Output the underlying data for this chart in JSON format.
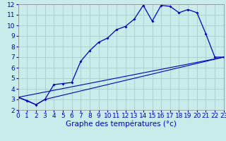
{
  "title": "Graphe des températures (°c)",
  "bg_color": "#c8ecea",
  "grid_color": "#aacccc",
  "line_color": "#0000cc",
  "xlim": [
    0,
    23
  ],
  "ylim": [
    2,
    12
  ],
  "xticks": [
    0,
    1,
    2,
    3,
    4,
    5,
    6,
    7,
    8,
    9,
    10,
    11,
    12,
    13,
    14,
    15,
    16,
    17,
    18,
    19,
    20,
    21,
    22,
    23
  ],
  "yticks": [
    2,
    3,
    4,
    5,
    6,
    7,
    8,
    9,
    10,
    11,
    12
  ],
  "main_x": [
    0,
    1,
    2,
    3,
    4,
    5,
    6,
    7,
    8,
    9,
    10,
    11,
    12,
    13,
    14,
    15,
    16,
    17,
    18,
    19,
    20,
    21,
    22,
    23
  ],
  "main_y": [
    3.2,
    2.9,
    2.5,
    3.0,
    4.4,
    4.5,
    4.6,
    6.6,
    7.6,
    8.4,
    8.8,
    9.6,
    9.9,
    10.6,
    11.9,
    10.4,
    11.9,
    11.8,
    11.2,
    11.5,
    11.2,
    9.2,
    7.0,
    7.0
  ],
  "line1_x": [
    0,
    23
  ],
  "line1_y": [
    3.2,
    7.0
  ],
  "line2_x": [
    0,
    2,
    3,
    23
  ],
  "line2_y": [
    3.2,
    2.5,
    3.0,
    7.0
  ],
  "tick_fontsize": 6.5,
  "xlabel_fontsize": 7.5
}
